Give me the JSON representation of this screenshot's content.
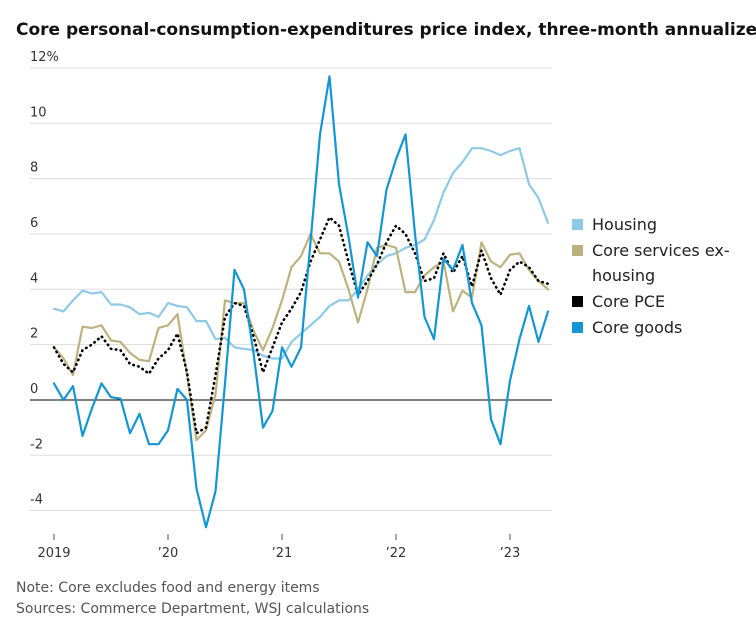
{
  "chart_data": {
    "type": "line",
    "title": "Core personal-consumption-expenditures price index, three-month annualized rate",
    "note": "Note: Core excludes food and energy items",
    "source": "Sources: Commerce Department, WSJ calculations",
    "categories": [
      "2019",
      null,
      null,
      null,
      null,
      null,
      null,
      null,
      null,
      null,
      null,
      null,
      "’20",
      null,
      null,
      null,
      null,
      null,
      null,
      null,
      null,
      null,
      null,
      null,
      "’21",
      null,
      null,
      null,
      null,
      null,
      null,
      null,
      null,
      null,
      null,
      null,
      "’22",
      null,
      null,
      null,
      null,
      null,
      null,
      null,
      null,
      null,
      null,
      null,
      "’23",
      null,
      null,
      null,
      null
    ],
    "ylim": [
      -4.7,
      12.1
    ],
    "yticks": [
      -4,
      -2,
      0,
      2,
      4,
      6,
      8,
      10,
      {
        "value": 12,
        "label": "12%"
      }
    ],
    "grid": true,
    "legend": "right",
    "series": [
      {
        "name": "Housing",
        "color": "#8ecae8",
        "dash": false,
        "values": [
          3.3,
          3.2,
          3.6,
          3.95,
          3.85,
          3.9,
          3.45,
          3.45,
          3.35,
          3.1,
          3.15,
          3.0,
          3.5,
          3.4,
          3.35,
          2.85,
          2.85,
          2.2,
          2.25,
          1.9,
          1.85,
          1.8,
          1.6,
          1.5,
          1.5,
          2.1,
          2.4,
          2.7,
          3.0,
          3.4,
          3.6,
          3.6,
          4.0,
          4.5,
          4.9,
          5.2,
          5.3,
          5.5,
          5.6,
          5.8,
          6.5,
          7.5,
          8.2,
          8.6,
          9.1,
          9.1,
          9.0,
          8.85,
          9.0,
          9.1,
          7.8,
          7.3,
          6.4
        ]
      },
      {
        "name": "Core services ex-housing",
        "color": "#bdb27f",
        "dash": false,
        "values": [
          1.9,
          1.5,
          0.9,
          2.65,
          2.6,
          2.7,
          2.15,
          2.1,
          1.7,
          1.45,
          1.4,
          2.6,
          2.7,
          3.1,
          0.9,
          -1.45,
          -1.1,
          0.2,
          3.6,
          3.5,
          3.5,
          2.5,
          1.8,
          2.6,
          3.6,
          4.8,
          5.2,
          6.0,
          5.3,
          5.3,
          5.0,
          4.0,
          2.8,
          4.0,
          5.5,
          5.6,
          5.5,
          3.9,
          3.9,
          4.5,
          4.8,
          5.0,
          3.2,
          3.95,
          3.7,
          5.7,
          5.0,
          4.8,
          5.25,
          5.3,
          4.7,
          4.3,
          4.0
        ]
      },
      {
        "name": "Core PCE",
        "color": "#000000",
        "dash": true,
        "values": [
          1.9,
          1.3,
          1.0,
          1.8,
          2.0,
          2.3,
          1.85,
          1.8,
          1.3,
          1.2,
          0.95,
          1.5,
          1.8,
          2.4,
          1.0,
          -1.2,
          -1.0,
          0.9,
          3.0,
          3.5,
          3.4,
          2.3,
          1.0,
          1.9,
          2.8,
          3.3,
          3.9,
          5.0,
          5.8,
          6.6,
          6.3,
          5.0,
          3.8,
          4.3,
          4.9,
          5.7,
          6.3,
          6.0,
          5.3,
          4.3,
          4.4,
          5.3,
          4.6,
          5.2,
          4.1,
          5.4,
          4.4,
          3.8,
          4.7,
          5.0,
          4.8,
          4.3,
          4.2
        ]
      },
      {
        "name": "Core goods",
        "color": "#1496d4",
        "dash": false,
        "values": [
          0.6,
          0,
          0.5,
          -1.3,
          -0.3,
          0.6,
          0.1,
          0.05,
          -1.2,
          -0.5,
          -1.6,
          -1.6,
          -1.1,
          0.4,
          0,
          -3.2,
          -4.6,
          -3.3,
          0.6,
          4.7,
          4.0,
          1.7,
          -1.0,
          -0.4,
          1.9,
          1.2,
          1.9,
          5.7,
          9.6,
          11.7,
          7.8,
          5.9,
          3.7,
          5.7,
          5.2,
          7.6,
          8.7,
          9.6,
          6.0,
          3.0,
          2.2,
          5.1,
          4.7,
          5.6,
          3.5,
          2.7,
          -0.7,
          -1.6,
          0.7,
          2.2,
          3.4,
          2.1,
          3.2
        ]
      }
    ]
  }
}
